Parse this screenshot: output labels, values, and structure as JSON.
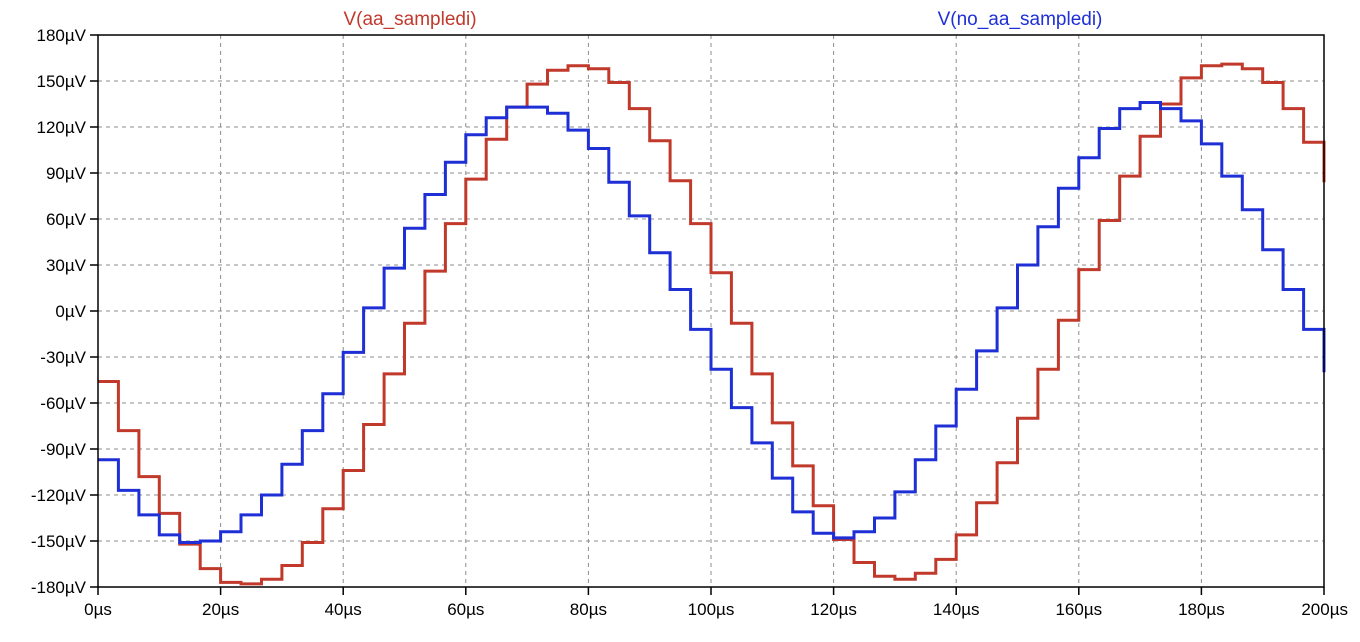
{
  "chart_data": {
    "type": "line",
    "title": "",
    "xlabel": "",
    "ylabel": "",
    "xlim": [
      0,
      200
    ],
    "ylim": [
      -180,
      180
    ],
    "grid": true,
    "x_unit": "µs",
    "y_unit": "µV",
    "x_ticks": [
      0,
      20,
      40,
      60,
      80,
      100,
      120,
      140,
      160,
      180,
      200
    ],
    "y_ticks": [
      180,
      150,
      120,
      90,
      60,
      30,
      0,
      -30,
      -60,
      -90,
      -120,
      -150,
      -180
    ],
    "x_tick_labels": [
      "0µs",
      "20µs",
      "40µs",
      "60µs",
      "80µs",
      "100µs",
      "120µs",
      "140µs",
      "160µs",
      "180µs",
      "200µs"
    ],
    "y_tick_labels": [
      "180µV",
      "150µV",
      "120µV",
      "90µV",
      "60µV",
      "30µV",
      "0µV",
      "-30µV",
      "-60µV",
      "-90µV",
      "-120µV",
      "-150µV",
      "-180µV"
    ],
    "step_period": 3.33,
    "series": [
      {
        "name": "V(aa_sampledi)",
        "color": "#c0392b",
        "style": "step",
        "x": [
          0,
          3.33,
          6.67,
          10,
          13.33,
          16.67,
          20,
          23.33,
          26.67,
          30,
          33.33,
          36.67,
          40,
          43.33,
          46.67,
          50,
          53.33,
          56.67,
          60,
          63.33,
          66.67,
          70,
          73.33,
          76.67,
          80,
          83.33,
          86.67,
          90,
          93.33,
          96.67,
          100,
          103.33,
          106.67,
          110,
          113.33,
          116.67,
          120,
          123.33,
          126.67,
          130,
          133.33,
          136.67,
          140,
          143.33,
          146.67,
          150,
          153.33,
          156.67,
          160,
          163.33,
          166.67,
          170,
          173.33,
          176.67,
          180,
          183.33,
          186.67,
          190,
          193.33,
          196.67,
          200
        ],
        "values": [
          -46,
          -78,
          -108,
          -132,
          -152,
          -168,
          -177,
          -178,
          -175,
          -166,
          -151,
          -129,
          -104,
          -74,
          -41,
          -8,
          26,
          57,
          86,
          112,
          133,
          148,
          157,
          160,
          158,
          149,
          132,
          111,
          85,
          57,
          25,
          -8,
          -41,
          -73,
          -101,
          -127,
          -149,
          -164,
          -173,
          -175,
          -171,
          -162,
          -146,
          -125,
          -99,
          -70,
          -38,
          -6,
          27,
          59,
          88,
          114,
          135,
          152,
          160,
          161,
          158,
          149,
          132,
          110,
          84
        ]
      },
      {
        "name": "V(no_aa_sampledi)",
        "color": "#1e2fd6",
        "style": "step",
        "x": [
          0,
          3.33,
          6.67,
          10,
          13.33,
          16.67,
          20,
          23.33,
          26.67,
          30,
          33.33,
          36.67,
          40,
          43.33,
          46.67,
          50,
          53.33,
          56.67,
          60,
          63.33,
          66.67,
          70,
          73.33,
          76.67,
          80,
          83.33,
          86.67,
          90,
          93.33,
          96.67,
          100,
          103.33,
          106.67,
          110,
          113.33,
          116.67,
          120,
          123.33,
          126.67,
          130,
          133.33,
          136.67,
          140,
          143.33,
          146.67,
          150,
          153.33,
          156.67,
          160,
          163.33,
          166.67,
          170,
          173.33,
          176.67,
          180,
          183.33,
          186.67,
          190,
          193.33,
          196.67,
          200
        ],
        "values": [
          -97,
          -117,
          -133,
          -146,
          -151,
          -150,
          -144,
          -133,
          -120,
          -100,
          -78,
          -54,
          -27,
          2,
          28,
          54,
          76,
          97,
          115,
          126,
          133,
          133,
          129,
          118,
          106,
          84,
          62,
          38,
          14,
          -12,
          -38,
          -63,
          -86,
          -109,
          -131,
          -145,
          -148,
          -144,
          -135,
          -118,
          -97,
          -75,
          -51,
          -26,
          2,
          30,
          55,
          80,
          100,
          119,
          132,
          136,
          132,
          124,
          109,
          88,
          66,
          40,
          14,
          -12,
          -40
        ]
      }
    ]
  }
}
